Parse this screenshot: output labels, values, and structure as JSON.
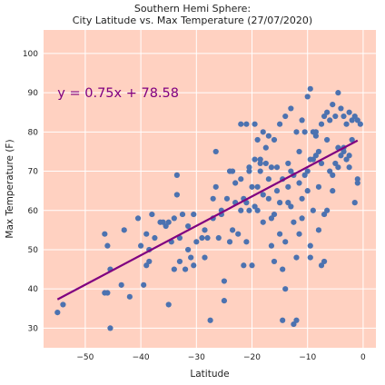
{
  "chart_data": {
    "type": "scatter",
    "title": "Southern Hemi Sphere:",
    "subtitle": "City Latitude vs. Max Temperature (27/07/2020)",
    "xlabel": "Latitude",
    "ylabel": "Max Temperature (F)",
    "xlim": [
      -57.5,
      2.3
    ],
    "ylim": [
      25,
      106
    ],
    "xticks": [
      -50,
      -40,
      -30,
      -20,
      -10,
      0
    ],
    "yticks": [
      30,
      40,
      50,
      60,
      70,
      80,
      90,
      100
    ],
    "grid": true,
    "colors": {
      "plot_background": "#FFD1C1",
      "grid": "#FFFFFF",
      "points": "#4C72B0",
      "regression_line": "#800080",
      "annotation": "#800080"
    },
    "annotation": {
      "text": "y = 0.75x + 78.58",
      "x": -55,
      "y": 90
    },
    "regression": {
      "slope": 0.75,
      "intercept": 78.58,
      "x_range": [
        -55,
        -1
      ]
    },
    "points": [
      [
        -55,
        34
      ],
      [
        -54,
        36
      ],
      [
        -46.5,
        54
      ],
      [
        -46.5,
        39
      ],
      [
        -46,
        39
      ],
      [
        -46,
        51
      ],
      [
        -45.5,
        30
      ],
      [
        -45.5,
        45
      ],
      [
        -43.5,
        41
      ],
      [
        -43,
        55
      ],
      [
        -42,
        38
      ],
      [
        -40.5,
        58
      ],
      [
        -40,
        51
      ],
      [
        -39.5,
        41
      ],
      [
        -39,
        46
      ],
      [
        -39,
        54
      ],
      [
        -38.5,
        47
      ],
      [
        -38,
        59
      ],
      [
        -37.5,
        53
      ],
      [
        -36,
        57
      ],
      [
        -35.5,
        56
      ],
      [
        -35,
        57
      ],
      [
        -35,
        36
      ],
      [
        -34.5,
        52
      ],
      [
        -34,
        58
      ],
      [
        -34,
        45
      ],
      [
        -33.5,
        64
      ],
      [
        -33.5,
        69
      ],
      [
        -33,
        47
      ],
      [
        -33,
        53
      ],
      [
        -32.5,
        59
      ],
      [
        -32,
        45
      ],
      [
        -31.5,
        50
      ],
      [
        -31,
        48
      ],
      [
        -30.5,
        59
      ],
      [
        -30.5,
        46
      ],
      [
        -30,
        52
      ],
      [
        -29,
        53
      ],
      [
        -28.5,
        48
      ],
      [
        -28,
        53
      ],
      [
        -27.5,
        32
      ],
      [
        -27,
        58
      ],
      [
        -27,
        63
      ],
      [
        -26.5,
        75
      ],
      [
        -26,
        53
      ],
      [
        -25.5,
        59
      ],
      [
        -25.5,
        60
      ],
      [
        -25,
        37
      ],
      [
        -25,
        42
      ],
      [
        -24.5,
        63
      ],
      [
        -24,
        52
      ],
      [
        -24,
        70
      ],
      [
        -23.5,
        55
      ],
      [
        -23,
        62
      ],
      [
        -23,
        67
      ],
      [
        -22.5,
        54
      ],
      [
        -22,
        60
      ],
      [
        -22,
        68
      ],
      [
        -21.5,
        46
      ],
      [
        -21.5,
        63
      ],
      [
        -21,
        52
      ],
      [
        -21,
        62
      ],
      [
        -20.5,
        70
      ],
      [
        -20.5,
        71
      ],
      [
        -20,
        46
      ],
      [
        -20,
        66
      ],
      [
        -19.5,
        73
      ],
      [
        -19.5,
        61
      ],
      [
        -19,
        60
      ],
      [
        -19,
        66
      ],
      [
        -18.5,
        72
      ],
      [
        -18.5,
        73
      ],
      [
        -18,
        57
      ],
      [
        -18,
        64
      ],
      [
        -17.5,
        72
      ],
      [
        -17,
        63
      ],
      [
        -17,
        68
      ],
      [
        -16.5,
        58
      ],
      [
        -16.5,
        51
      ],
      [
        -16,
        47
      ],
      [
        -16,
        59
      ],
      [
        -15.5,
        71
      ],
      [
        -15,
        54
      ],
      [
        -15,
        62
      ],
      [
        -14.5,
        45
      ],
      [
        -14.5,
        32
      ],
      [
        -14,
        40
      ],
      [
        -14,
        52
      ],
      [
        -13.5,
        62
      ],
      [
        -13.5,
        66
      ],
      [
        -13,
        70
      ],
      [
        -13,
        61
      ],
      [
        -12.5,
        57
      ],
      [
        -12.5,
        31
      ],
      [
        -12,
        32
      ],
      [
        -12,
        48
      ],
      [
        -11.5,
        54
      ],
      [
        -11.5,
        67
      ],
      [
        -11,
        58
      ],
      [
        -11,
        63
      ],
      [
        -10.5,
        69
      ],
      [
        -10,
        70
      ],
      [
        -10,
        65
      ],
      [
        -9.5,
        48
      ],
      [
        -9.5,
        51
      ],
      [
        -9,
        60
      ],
      [
        -9,
        73
      ],
      [
        -8.5,
        74
      ],
      [
        -8.5,
        79
      ],
      [
        -8,
        55
      ],
      [
        -8,
        66
      ],
      [
        -7.5,
        46
      ],
      [
        -7,
        47
      ],
      [
        -7,
        59
      ],
      [
        -6.5,
        60
      ],
      [
        -6,
        70
      ],
      [
        -5.5,
        69
      ],
      [
        -5,
        72
      ],
      [
        -4.5,
        71
      ],
      [
        -4,
        74
      ],
      [
        -3.5,
        76
      ],
      [
        -3,
        73
      ],
      [
        -2.5,
        74
      ],
      [
        -2,
        78
      ],
      [
        -1.5,
        62
      ],
      [
        -1,
        68
      ],
      [
        -1,
        67
      ],
      [
        -19.5,
        82
      ],
      [
        -19,
        78
      ],
      [
        -18,
        80
      ],
      [
        -22,
        82
      ],
      [
        -21,
        82
      ],
      [
        -17,
        79
      ],
      [
        -16,
        78
      ],
      [
        -15,
        82
      ],
      [
        -14,
        84
      ],
      [
        -13,
        86
      ],
      [
        -12,
        80
      ],
      [
        -11,
        83
      ],
      [
        -10,
        89
      ],
      [
        -9.5,
        91
      ],
      [
        -9,
        80
      ],
      [
        -8,
        75
      ],
      [
        -7.5,
        82
      ],
      [
        -7,
        84
      ],
      [
        -6.5,
        85
      ],
      [
        -6,
        83
      ],
      [
        -5.5,
        87
      ],
      [
        -5,
        84
      ],
      [
        -4.5,
        90
      ],
      [
        -4,
        86
      ],
      [
        -3.5,
        84
      ],
      [
        -3,
        82
      ],
      [
        -2.5,
        85
      ],
      [
        -2,
        83
      ],
      [
        -1.5,
        84
      ],
      [
        -1,
        83
      ],
      [
        -0.5,
        82
      ],
      [
        -18.5,
        70
      ],
      [
        -17.5,
        76
      ],
      [
        -16.5,
        71
      ],
      [
        -15.5,
        65
      ],
      [
        -14.5,
        68
      ],
      [
        -13.5,
        72
      ],
      [
        -12.5,
        69
      ],
      [
        -11.5,
        75
      ],
      [
        -10.5,
        80
      ],
      [
        -9.5,
        73
      ],
      [
        -8.5,
        80
      ],
      [
        -7.5,
        72
      ],
      [
        -6.5,
        78
      ],
      [
        -5.5,
        65
      ],
      [
        -4.5,
        76
      ],
      [
        -3.5,
        75
      ],
      [
        -2.5,
        71
      ],
      [
        -20.5,
        60
      ],
      [
        -23.5,
        70
      ],
      [
        -26.5,
        66
      ],
      [
        -28.5,
        55
      ],
      [
        -31.5,
        56
      ],
      [
        -36.5,
        57
      ],
      [
        -38.5,
        50
      ]
    ]
  }
}
